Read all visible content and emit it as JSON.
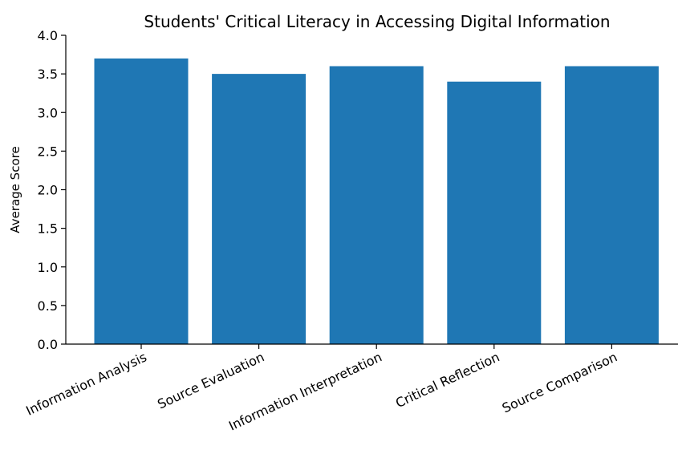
{
  "chart_data": {
    "type": "bar",
    "title": "Students' Critical Literacy in Accessing Digital Information",
    "xlabel": "",
    "ylabel": "Average Score",
    "categories": [
      "Information Analysis",
      "Source Evaluation",
      "Information Interpretation",
      "Critical Reflection",
      "Source Comparison"
    ],
    "values": [
      3.7,
      3.5,
      3.6,
      3.4,
      3.6
    ],
    "ylim": [
      0,
      4.0
    ],
    "yticks": [
      "0.0",
      "0.5",
      "1.0",
      "1.5",
      "2.0",
      "2.5",
      "3.0",
      "3.5",
      "4.0"
    ],
    "bar_color": "#1f77b4",
    "grid": false,
    "legend": "none"
  }
}
